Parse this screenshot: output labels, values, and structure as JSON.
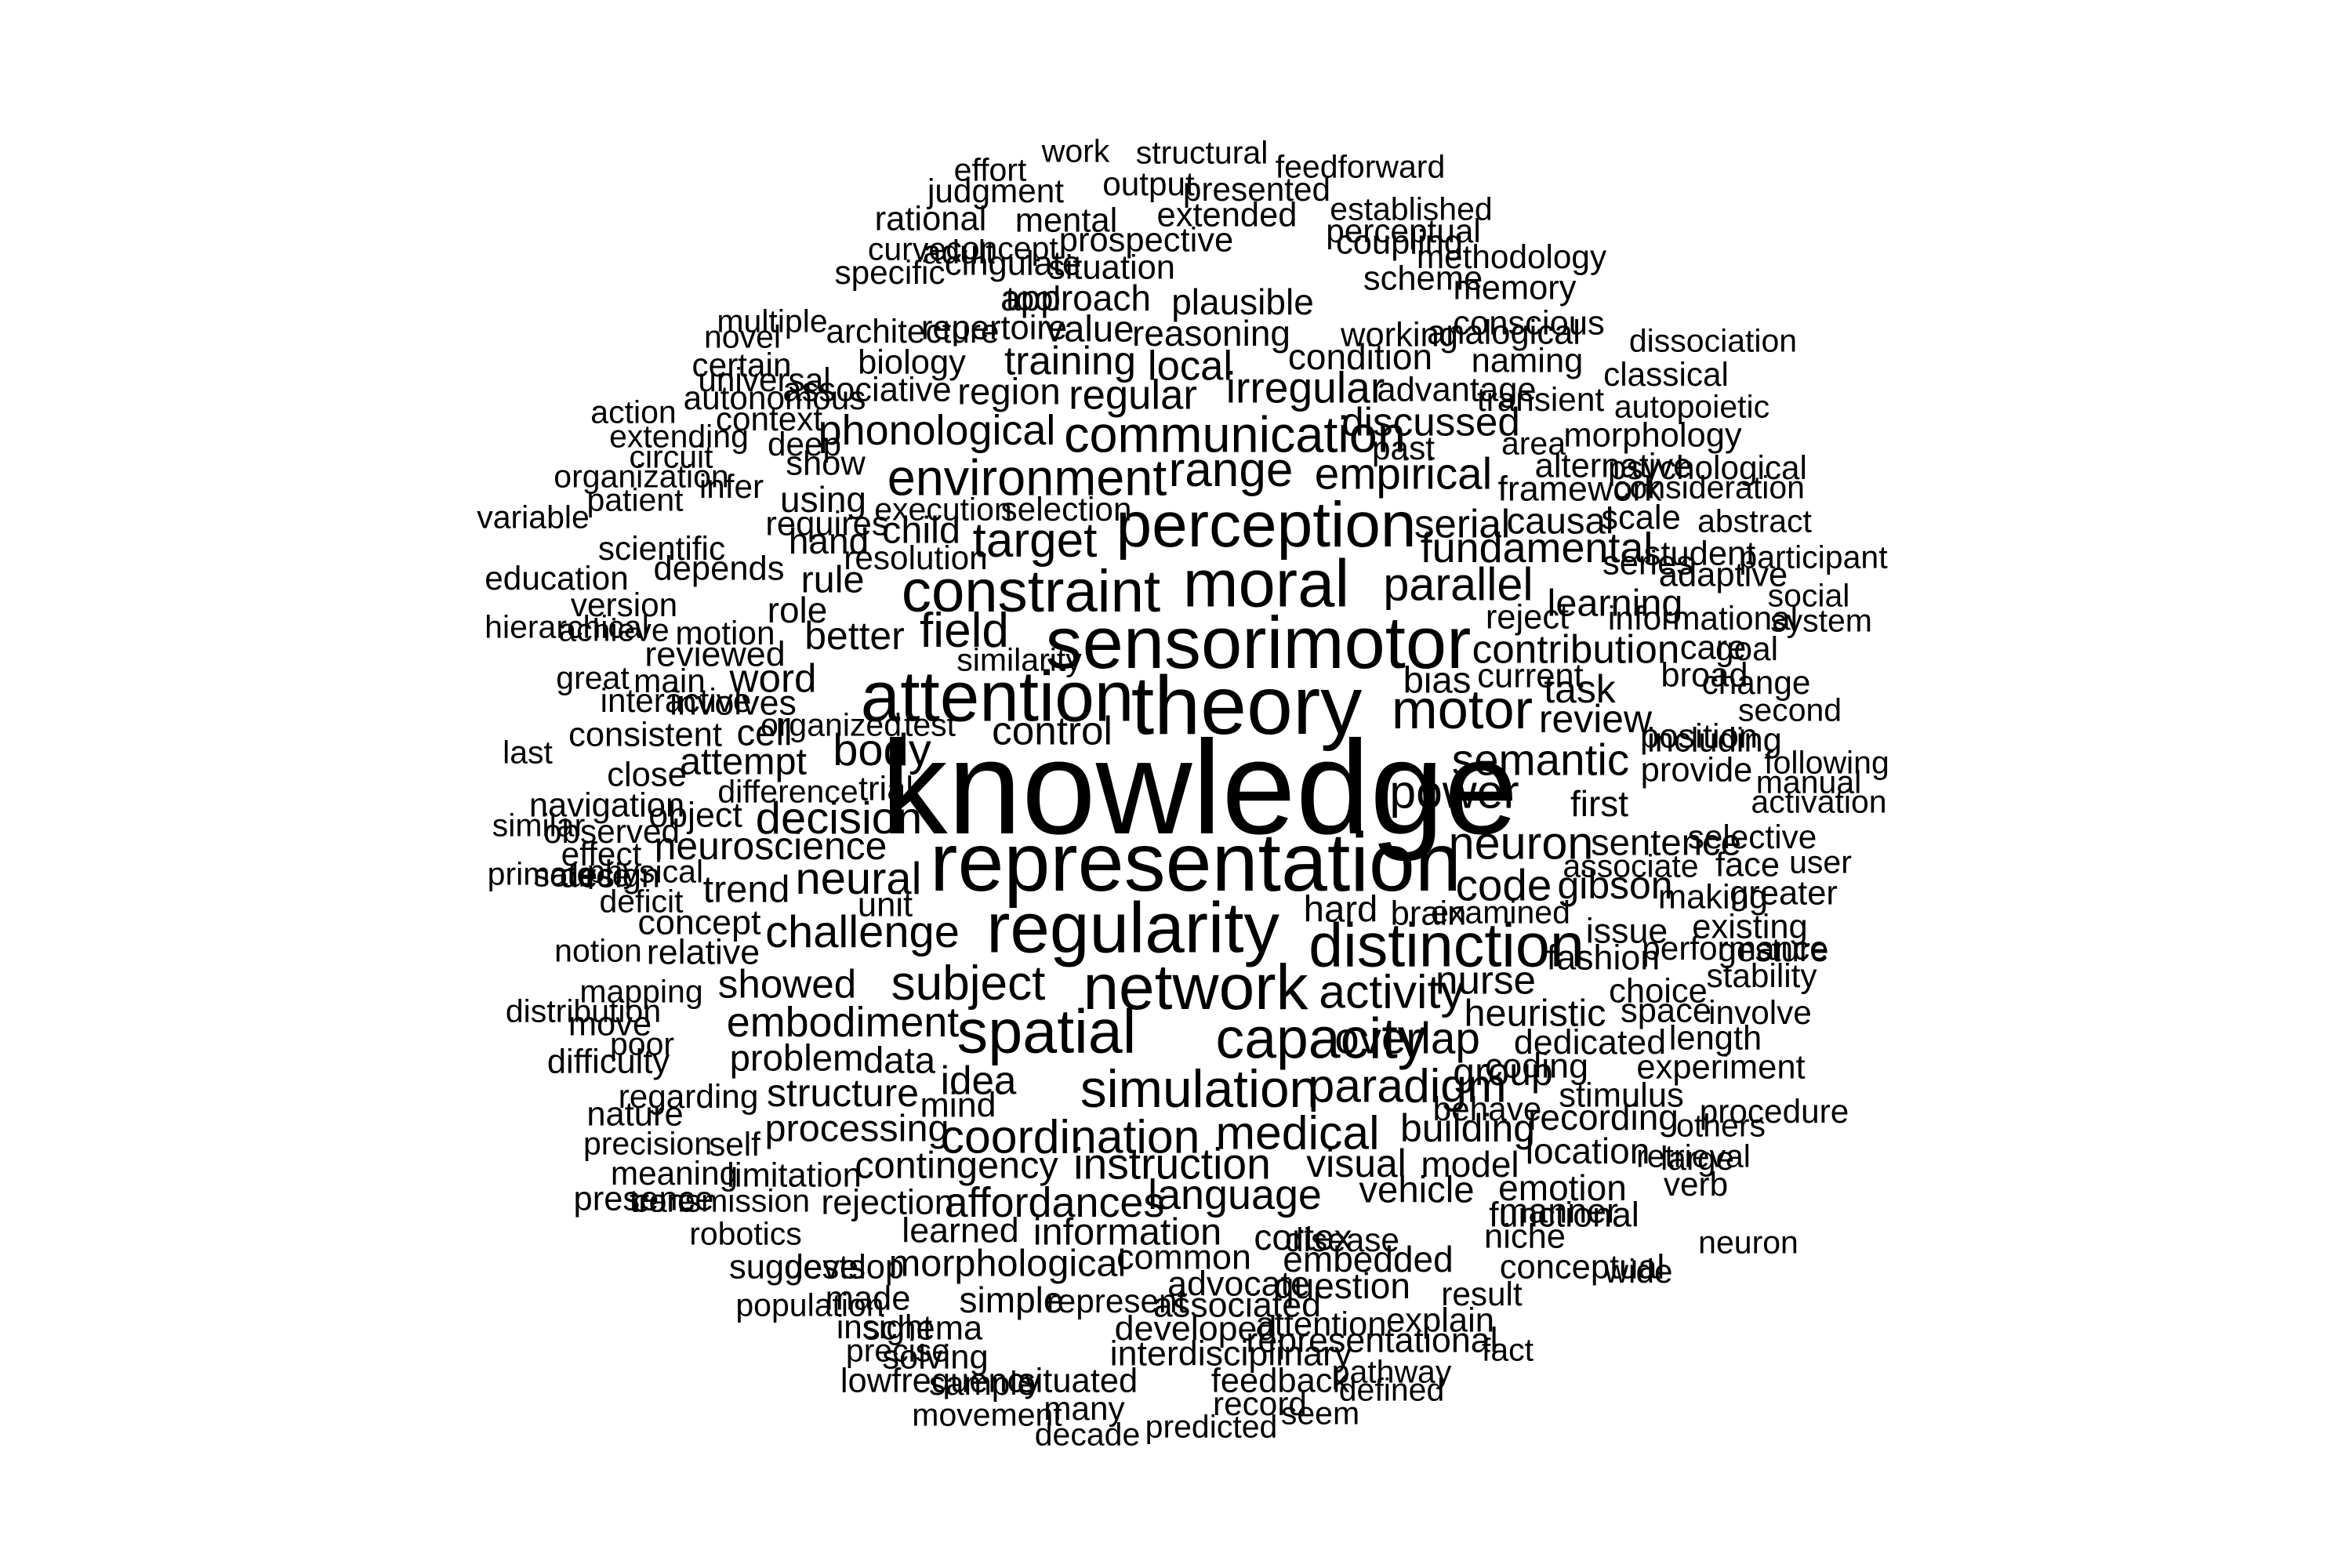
{
  "words": [
    {
      "text": "knowledge",
      "weight": 1.0
    },
    {
      "text": "theory",
      "weight": 0.6
    },
    {
      "text": "representation",
      "weight": 0.6
    },
    {
      "text": "sensorimotor",
      "weight": 0.52
    },
    {
      "text": "attention",
      "weight": 0.5
    },
    {
      "text": "regularity",
      "weight": 0.5
    },
    {
      "text": "moral",
      "weight": 0.46
    },
    {
      "text": "perception",
      "weight": 0.44
    },
    {
      "text": "network",
      "weight": 0.44
    },
    {
      "text": "spatial",
      "weight": 0.42
    },
    {
      "text": "distinction",
      "weight": 0.42
    },
    {
      "text": "constraint",
      "weight": 0.4
    },
    {
      "text": "capacity",
      "weight": 0.38
    },
    {
      "text": "motor",
      "weight": 0.36
    },
    {
      "text": "simulation",
      "weight": 0.34
    },
    {
      "text": "communication",
      "weight": 0.32
    },
    {
      "text": "environment",
      "weight": 0.32
    },
    {
      "text": "range",
      "weight": 0.3
    },
    {
      "text": "field",
      "weight": 0.3
    },
    {
      "text": "target",
      "weight": 0.3
    },
    {
      "text": "subject",
      "weight": 0.3
    },
    {
      "text": "activity",
      "weight": 0.29
    },
    {
      "text": "paradigm",
      "weight": 0.29
    },
    {
      "text": "medical",
      "weight": 0.29
    },
    {
      "text": "coordination",
      "weight": 0.29
    },
    {
      "text": "power",
      "weight": 0.29
    },
    {
      "text": "parallel",
      "weight": 0.28
    },
    {
      "text": "neuron",
      "weight": 0.28
    },
    {
      "text": "body",
      "weight": 0.27
    },
    {
      "text": "decision",
      "weight": 0.27
    },
    {
      "text": "neural",
      "weight": 0.27
    },
    {
      "text": "challenge",
      "weight": 0.27
    },
    {
      "text": "overlap",
      "weight": 0.26
    },
    {
      "text": "empirical",
      "weight": 0.26
    },
    {
      "text": "semantic",
      "weight": 0.26
    },
    {
      "text": "code",
      "weight": 0.26
    },
    {
      "text": "irregular",
      "weight": 0.25
    },
    {
      "text": "instruction",
      "weight": 0.25
    },
    {
      "text": "language",
      "weight": 0.24
    },
    {
      "text": "fundamental",
      "weight": 0.24
    },
    {
      "text": "embodiment",
      "weight": 0.24
    },
    {
      "text": "phonological",
      "weight": 0.24
    },
    {
      "text": "affordances",
      "weight": 0.24
    },
    {
      "text": "regular",
      "weight": 0.23
    },
    {
      "text": "local",
      "weight": 0.23
    },
    {
      "text": "training",
      "weight": 0.22
    },
    {
      "text": "contribution",
      "weight": 0.22
    },
    {
      "text": "discussed",
      "weight": 0.22
    },
    {
      "text": "idea",
      "weight": 0.22
    },
    {
      "text": "nurse",
      "weight": 0.22
    },
    {
      "text": "serial",
      "weight": 0.22
    },
    {
      "text": "word",
      "weight": 0.22
    },
    {
      "text": "control",
      "weight": 0.22
    },
    {
      "text": "showed",
      "weight": 0.22
    },
    {
      "text": "neuroscience",
      "weight": 0.21
    },
    {
      "text": "task",
      "weight": 0.21
    },
    {
      "text": "visual",
      "weight": 0.21
    },
    {
      "text": "building",
      "weight": 0.21
    },
    {
      "text": "better",
      "weight": 0.21
    },
    {
      "text": "structure",
      "weight": 0.21
    },
    {
      "text": "gibson",
      "weight": 0.21
    },
    {
      "text": "review",
      "weight": 0.21
    },
    {
      "text": "group",
      "weight": 0.21
    },
    {
      "text": "heuristic",
      "weight": 0.2
    },
    {
      "text": "learning",
      "weight": 0.2
    },
    {
      "text": "morphological",
      "weight": 0.2
    },
    {
      "text": "trend",
      "weight": 0.2
    },
    {
      "text": "attempt",
      "weight": 0.2
    },
    {
      "text": "processing",
      "weight": 0.2
    },
    {
      "text": "contingency",
      "weight": 0.2
    },
    {
      "text": "information",
      "weight": 0.2
    },
    {
      "text": "child",
      "weight": 0.2
    },
    {
      "text": "rule",
      "weight": 0.2
    },
    {
      "text": "problem",
      "weight": 0.19
    },
    {
      "text": "data",
      "weight": 0.19
    },
    {
      "text": "hard",
      "weight": 0.19
    },
    {
      "text": "cell",
      "weight": 0.19
    },
    {
      "text": "bias",
      "weight": 0.19
    },
    {
      "text": "sentence",
      "weight": 0.19
    },
    {
      "text": "causal",
      "weight": 0.19
    },
    {
      "text": "region",
      "weight": 0.19
    },
    {
      "text": "vehicle",
      "weight": 0.19
    },
    {
      "text": "value",
      "weight": 0.19
    },
    {
      "text": "approach",
      "weight": 0.18
    },
    {
      "text": "reasoning",
      "weight": 0.18
    },
    {
      "text": "cortex",
      "weight": 0.18
    },
    {
      "text": "model",
      "weight": 0.18
    },
    {
      "text": "hand",
      "weight": 0.18
    },
    {
      "text": "first",
      "weight": 0.18
    },
    {
      "text": "condition",
      "weight": 0.18
    },
    {
      "text": "recording",
      "weight": 0.18
    },
    {
      "text": "location",
      "weight": 0.18
    },
    {
      "text": "emotion",
      "weight": 0.18
    },
    {
      "text": "question",
      "weight": 0.18
    },
    {
      "text": "simple",
      "weight": 0.18
    },
    {
      "text": "embedded",
      "weight": 0.18
    },
    {
      "text": "plausible",
      "weight": 0.18
    },
    {
      "text": "using",
      "weight": 0.18
    },
    {
      "text": "role",
      "weight": 0.18
    },
    {
      "text": "framework",
      "weight": 0.17
    },
    {
      "text": "dedicated",
      "weight": 0.17
    },
    {
      "text": "fashion",
      "weight": 0.17
    },
    {
      "text": "issue",
      "weight": 0.17
    },
    {
      "text": "coding",
      "weight": 0.17
    },
    {
      "text": "manner",
      "weight": 0.17
    },
    {
      "text": "functional",
      "weight": 0.17
    },
    {
      "text": "associated",
      "weight": 0.17
    },
    {
      "text": "common",
      "weight": 0.17
    },
    {
      "text": "rejection",
      "weight": 0.17
    },
    {
      "text": "learned",
      "weight": 0.17
    },
    {
      "text": "advocate",
      "weight": 0.17
    },
    {
      "text": "developed",
      "weight": 0.17
    },
    {
      "text": "interdisciplinary",
      "weight": 0.17
    },
    {
      "text": "representational",
      "weight": 0.17
    },
    {
      "text": "object",
      "weight": 0.17
    },
    {
      "text": "concept",
      "weight": 0.17
    },
    {
      "text": "relative",
      "weight": 0.17
    },
    {
      "text": "reviewed",
      "weight": 0.17
    },
    {
      "text": "involves",
      "weight": 0.17
    },
    {
      "text": "mind",
      "weight": 0.17
    },
    {
      "text": "limitation",
      "weight": 0.16
    },
    {
      "text": "stimulus",
      "weight": 0.16
    },
    {
      "text": "experiment",
      "weight": 0.16
    },
    {
      "text": "length",
      "weight": 0.16
    },
    {
      "text": "choice",
      "weight": 0.16
    },
    {
      "text": "space",
      "weight": 0.16
    },
    {
      "text": "morphology",
      "weight": 0.16
    },
    {
      "text": "provide",
      "weight": 0.16
    },
    {
      "text": "position",
      "weight": 0.16
    },
    {
      "text": "including",
      "weight": 0.16
    },
    {
      "text": "broad",
      "weight": 0.16
    },
    {
      "text": "care",
      "weight": 0.16
    },
    {
      "text": "student",
      "weight": 0.16
    },
    {
      "text": "adaptive",
      "weight": 0.16
    },
    {
      "text": "scale",
      "weight": 0.16
    },
    {
      "text": "series",
      "weight": 0.16
    },
    {
      "text": "alternative",
      "weight": 0.16
    },
    {
      "text": "advantage",
      "weight": 0.16
    },
    {
      "text": "naming",
      "weight": 0.16
    },
    {
      "text": "conscious",
      "weight": 0.16
    },
    {
      "text": "memory",
      "weight": 0.16
    },
    {
      "text": "working",
      "weight": 0.16
    },
    {
      "text": "scheme",
      "weight": 0.16
    },
    {
      "text": "analogical",
      "weight": 0.16
    },
    {
      "text": "coupling",
      "weight": 0.16
    },
    {
      "text": "extended",
      "weight": 0.16
    },
    {
      "text": "prospective",
      "weight": 0.16
    },
    {
      "text": "situation",
      "weight": 0.16
    },
    {
      "text": "cingulate",
      "weight": 0.16
    },
    {
      "text": "tool",
      "weight": 0.16
    },
    {
      "text": "repertoire",
      "weight": 0.16
    },
    {
      "text": "biology",
      "weight": 0.16
    },
    {
      "text": "associative",
      "weight": 0.16
    },
    {
      "text": "show",
      "weight": 0.16
    },
    {
      "text": "requires",
      "weight": 0.16
    },
    {
      "text": "depends",
      "weight": 0.16
    },
    {
      "text": "current",
      "weight": 0.16
    },
    {
      "text": "reject",
      "weight": 0.16
    },
    {
      "text": "brain",
      "weight": 0.16
    },
    {
      "text": "unit",
      "weight": 0.16
    },
    {
      "text": "trial",
      "weight": 0.16
    },
    {
      "text": "consistent",
      "weight": 0.16
    },
    {
      "text": "close",
      "weight": 0.16
    },
    {
      "text": "navigation",
      "weight": 0.16
    },
    {
      "text": "design",
      "weight": 0.16
    },
    {
      "text": "move",
      "weight": 0.16
    },
    {
      "text": "difficulty",
      "weight": 0.16
    },
    {
      "text": "nature",
      "weight": 0.16
    },
    {
      "text": "presence",
      "weight": 0.16
    },
    {
      "text": "develop",
      "weight": 0.16
    },
    {
      "text": "suggests",
      "weight": 0.16
    },
    {
      "text": "made",
      "weight": 0.16
    },
    {
      "text": "schema",
      "weight": 0.16
    },
    {
      "text": "solving",
      "weight": 0.16
    },
    {
      "text": "lowfrequency",
      "weight": 0.16
    },
    {
      "text": "situated",
      "weight": 0.16
    },
    {
      "text": "feedback",
      "weight": 0.16
    },
    {
      "text": "attention",
      "weight": 0.16
    },
    {
      "text": "explain",
      "weight": 0.16
    },
    {
      "text": "niche",
      "weight": 0.16
    },
    {
      "text": "conceptual",
      "weight": 0.16
    },
    {
      "text": "making",
      "weight": 0.16
    },
    {
      "text": "existing",
      "weight": 0.16
    },
    {
      "text": "face",
      "weight": 0.16
    },
    {
      "text": "greater",
      "weight": 0.16
    },
    {
      "text": "rational",
      "weight": 0.16
    },
    {
      "text": "mental",
      "weight": 0.16
    },
    {
      "text": "specific",
      "weight": 0.15
    },
    {
      "text": "architecture",
      "weight": 0.15
    },
    {
      "text": "autonomous",
      "weight": 0.15
    },
    {
      "text": "universal",
      "weight": 0.15
    },
    {
      "text": "scientific",
      "weight": 0.15
    },
    {
      "text": "interactive",
      "weight": 0.15
    },
    {
      "text": "main",
      "weight": 0.15
    },
    {
      "text": "infer",
      "weight": 0.15
    },
    {
      "text": "deep",
      "weight": 0.15
    },
    {
      "text": "context",
      "weight": 0.15
    },
    {
      "text": "certain",
      "weight": 0.15
    },
    {
      "text": "output",
      "weight": 0.15
    },
    {
      "text": "presented",
      "weight": 0.15
    },
    {
      "text": "judgment",
      "weight": 0.15
    },
    {
      "text": "perceptual",
      "weight": 0.15
    },
    {
      "text": "methodology",
      "weight": 0.15
    },
    {
      "text": "transient",
      "weight": 0.15
    },
    {
      "text": "classical",
      "weight": 0.15
    },
    {
      "text": "psychological",
      "weight": 0.15
    },
    {
      "text": "informational",
      "weight": 0.15
    },
    {
      "text": "goal",
      "weight": 0.15
    },
    {
      "text": "change",
      "weight": 0.15
    },
    {
      "text": "selective",
      "weight": 0.15
    },
    {
      "text": "gesture",
      "weight": 0.15
    },
    {
      "text": "performance",
      "weight": 0.15
    },
    {
      "text": "stability",
      "weight": 0.15
    },
    {
      "text": "involve",
      "weight": 0.15
    },
    {
      "text": "procedure",
      "weight": 0.15
    },
    {
      "text": "verb",
      "weight": 0.15
    },
    {
      "text": "large",
      "weight": 0.15
    },
    {
      "text": "result",
      "weight": 0.15
    },
    {
      "text": "disease",
      "weight": 0.15
    },
    {
      "text": "record",
      "weight": 0.15
    },
    {
      "text": "many",
      "weight": 0.15
    },
    {
      "text": "sample",
      "weight": 0.15
    },
    {
      "text": "insight",
      "weight": 0.15
    },
    {
      "text": "represent",
      "weight": 0.15
    },
    {
      "text": "meaning",
      "weight": 0.15
    },
    {
      "text": "self",
      "weight": 0.15
    },
    {
      "text": "regarding",
      "weight": 0.15
    },
    {
      "text": "effect",
      "weight": 0.15
    },
    {
      "text": "observed",
      "weight": 0.15
    },
    {
      "text": "education",
      "weight": 0.15
    },
    {
      "text": "version",
      "weight": 0.15
    },
    {
      "text": "motion",
      "weight": 0.15
    },
    {
      "text": "resolution",
      "weight": 0.15
    },
    {
      "text": "selection",
      "weight": 0.15
    },
    {
      "text": "past",
      "weight": 0.15
    },
    {
      "text": "behave",
      "weight": 0.15
    },
    {
      "text": "wide",
      "weight": 0.15
    },
    {
      "text": "adult",
      "weight": 0.15
    },
    {
      "text": "concept",
      "weight": 0.14
    },
    {
      "text": "curve",
      "weight": 0.14
    },
    {
      "text": "effort",
      "weight": 0.14
    },
    {
      "text": "work",
      "weight": 0.14
    },
    {
      "text": "structural",
      "weight": 0.14
    },
    {
      "text": "feedforward",
      "weight": 0.14
    },
    {
      "text": "established",
      "weight": 0.14
    },
    {
      "text": "dissociation",
      "weight": 0.14
    },
    {
      "text": "autopoietic",
      "weight": 0.14
    },
    {
      "text": "consideration",
      "weight": 0.14
    },
    {
      "text": "abstract",
      "weight": 0.14
    },
    {
      "text": "participant",
      "weight": 0.14
    },
    {
      "text": "social",
      "weight": 0.14
    },
    {
      "text": "system",
      "weight": 0.14
    },
    {
      "text": "second",
      "weight": 0.14
    },
    {
      "text": "following",
      "weight": 0.14
    },
    {
      "text": "manual",
      "weight": 0.14
    },
    {
      "text": "activation",
      "weight": 0.14
    },
    {
      "text": "user",
      "weight": 0.14
    },
    {
      "text": "others",
      "weight": 0.14
    },
    {
      "text": "retrieval",
      "weight": 0.14
    },
    {
      "text": "neuron",
      "weight": 0.14
    },
    {
      "text": "pathway",
      "weight": 0.14
    },
    {
      "text": "defined",
      "weight": 0.14
    },
    {
      "text": "seem",
      "weight": 0.14
    },
    {
      "text": "predicted",
      "weight": 0.14
    },
    {
      "text": "decade",
      "weight": 0.14
    },
    {
      "text": "movement",
      "weight": 0.14
    },
    {
      "text": "precise",
      "weight": 0.14
    },
    {
      "text": "population",
      "weight": 0.14
    },
    {
      "text": "robotics",
      "weight": 0.14
    },
    {
      "text": "transmission",
      "weight": 0.14
    },
    {
      "text": "core",
      "weight": 0.14
    },
    {
      "text": "precision",
      "weight": 0.14
    },
    {
      "text": "poor",
      "weight": 0.14
    },
    {
      "text": "distribution",
      "weight": 0.14
    },
    {
      "text": "mapping",
      "weight": 0.14
    },
    {
      "text": "notion",
      "weight": 0.14
    },
    {
      "text": "deficit",
      "weight": 0.14
    },
    {
      "text": "physical",
      "weight": 0.14
    },
    {
      "text": "source",
      "weight": 0.14
    },
    {
      "text": "similar",
      "weight": 0.14
    },
    {
      "text": "primate",
      "weight": 0.14
    },
    {
      "text": "last",
      "weight": 0.14
    },
    {
      "text": "great",
      "weight": 0.14
    },
    {
      "text": "hierarchical",
      "weight": 0.14
    },
    {
      "text": "achieve",
      "weight": 0.14
    },
    {
      "text": "variable",
      "weight": 0.14
    },
    {
      "text": "patient",
      "weight": 0.14
    },
    {
      "text": "organization",
      "weight": 0.14
    },
    {
      "text": "circuit",
      "weight": 0.14
    },
    {
      "text": "extending",
      "weight": 0.14
    },
    {
      "text": "action",
      "weight": 0.14
    },
    {
      "text": "novel",
      "weight": 0.14
    },
    {
      "text": "multiple",
      "weight": 0.14
    },
    {
      "text": "execution",
      "weight": 0.14
    },
    {
      "text": "similarity",
      "weight": 0.14
    },
    {
      "text": "organized",
      "weight": 0.14
    },
    {
      "text": "test",
      "weight": 0.14
    },
    {
      "text": "difference",
      "weight": 0.14
    },
    {
      "text": "area",
      "weight": 0.14
    },
    {
      "text": "associate",
      "weight": 0.14
    },
    {
      "text": "examined",
      "weight": 0.14
    },
    {
      "text": "fact",
      "weight": 0.14
    },
    {
      "text": "serf",
      "weight": 0.14
    },
    {
      "text": "aspect",
      "weight": 0.14
    },
    {
      "text": "surface",
      "weight": 0.14
    }
  ]
}
